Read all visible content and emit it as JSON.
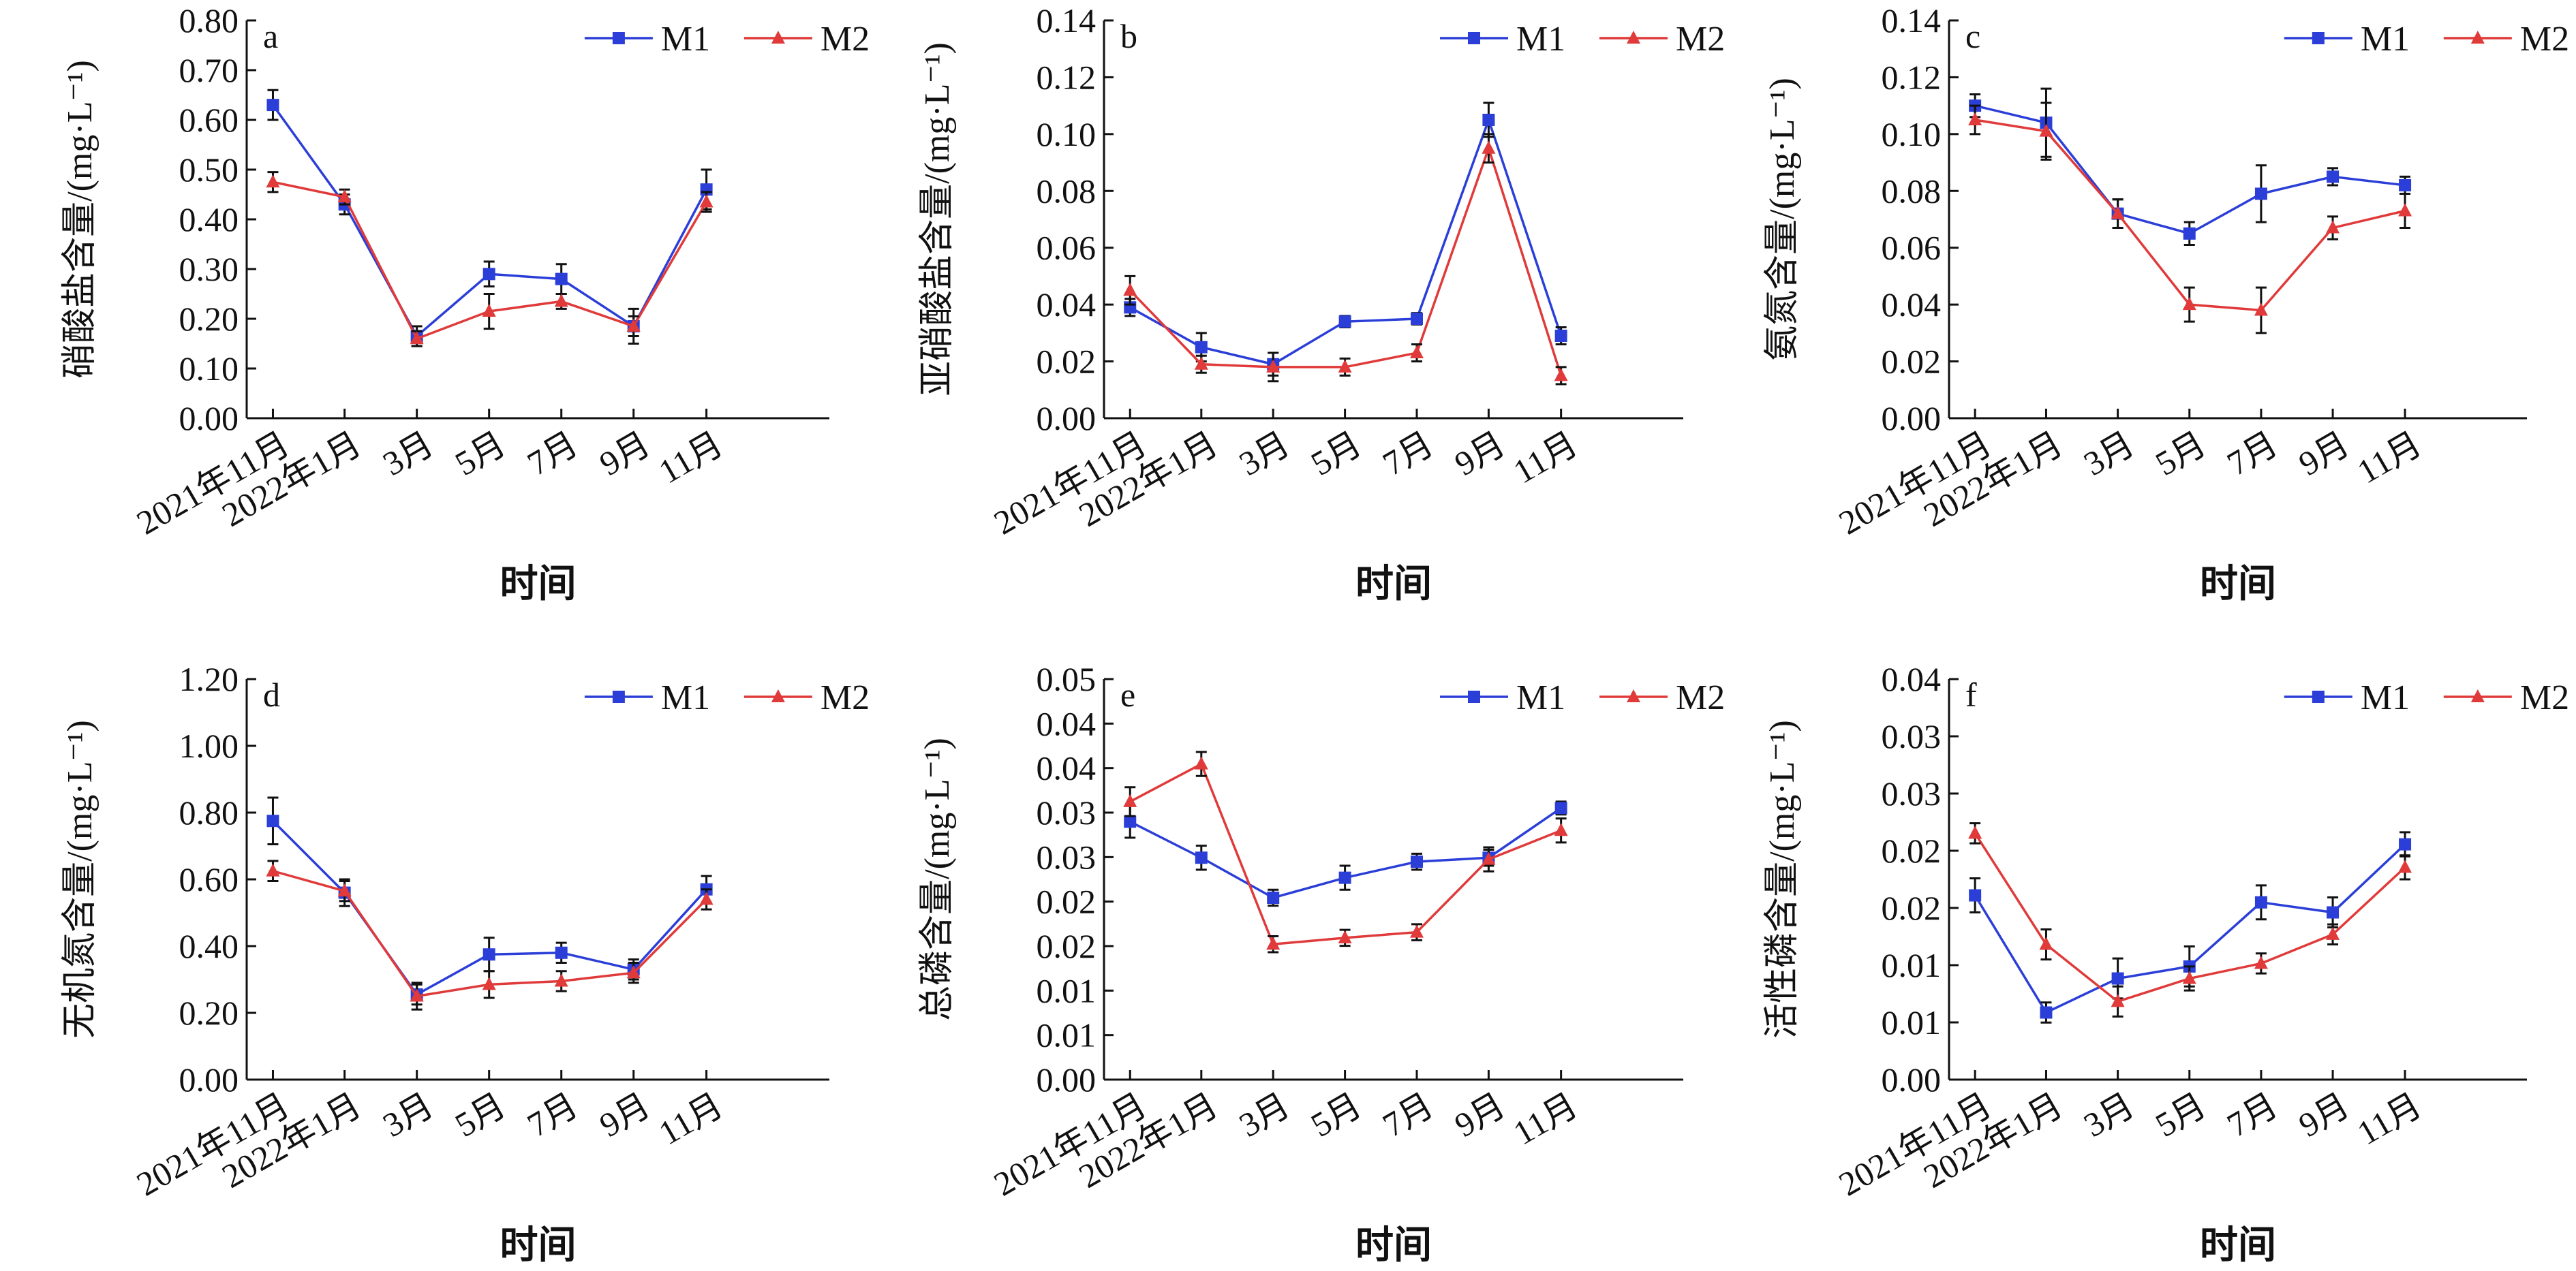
{
  "shared": {
    "xlabel": "时间",
    "x_categories": [
      "2021年11月",
      "2022年1月",
      "3月",
      "5月",
      "7月",
      "9月",
      "11月"
    ],
    "legend_labels": [
      "M1",
      "M2"
    ],
    "series_colors": {
      "M1": "#2b3fd8",
      "M2": "#e03a3a"
    },
    "markers": {
      "M1": "square",
      "M2": "triangle"
    }
  },
  "chart_data": [
    {
      "panel": "a",
      "type": "line",
      "ylabel": "硝酸盐含量/(mg·L⁻¹)",
      "ylim": [
        0,
        0.8
      ],
      "yticks": [
        "0.00",
        "0.10",
        "0.20",
        "0.30",
        "0.40",
        "0.50",
        "0.60",
        "0.70",
        "0.80"
      ],
      "categories": [
        "2021年11月",
        "2022年1月",
        "3月",
        "5月",
        "7月",
        "9月",
        "11月"
      ],
      "series": [
        {
          "name": "M1",
          "values": [
            0.63,
            0.43,
            0.165,
            0.29,
            0.28,
            0.185,
            0.46
          ],
          "errors": [
            0.03,
            0.02,
            0.02,
            0.025,
            0.03,
            0.035,
            0.04
          ]
        },
        {
          "name": "M2",
          "values": [
            0.475,
            0.445,
            0.16,
            0.215,
            0.235,
            0.185,
            0.435
          ],
          "errors": [
            0.02,
            0.015,
            0.015,
            0.035,
            0.015,
            0.02,
            0.02
          ]
        }
      ]
    },
    {
      "panel": "b",
      "type": "line",
      "ylabel": "亚硝酸盐含量/(mg·L⁻¹)",
      "ylim": [
        0,
        0.14
      ],
      "yticks": [
        "0.00",
        "0.02",
        "0.04",
        "0.06",
        "0.08",
        "0.10",
        "0.12",
        "0.14"
      ],
      "categories": [
        "2021年11月",
        "2022年1月",
        "3月",
        "5月",
        "7月",
        "9月",
        "11月"
      ],
      "series": [
        {
          "name": "M1",
          "values": [
            0.039,
            0.025,
            0.019,
            0.034,
            0.035,
            0.105,
            0.029
          ],
          "errors": [
            0.003,
            0.005,
            0.004,
            0.002,
            0.002,
            0.006,
            0.003
          ]
        },
        {
          "name": "M2",
          "values": [
            0.045,
            0.019,
            0.018,
            0.018,
            0.023,
            0.095,
            0.015
          ],
          "errors": [
            0.005,
            0.003,
            0.005,
            0.003,
            0.003,
            0.005,
            0.003
          ]
        }
      ]
    },
    {
      "panel": "c",
      "type": "line",
      "ylabel": "氨氮含量/(mg·L⁻¹)",
      "ylim": [
        0,
        0.14
      ],
      "yticks": [
        "0.00",
        "0.02",
        "0.04",
        "0.06",
        "0.08",
        "0.10",
        "0.12",
        "0.14"
      ],
      "categories": [
        "2021年11月",
        "2022年1月",
        "3月",
        "5月",
        "7月",
        "9月",
        "11月"
      ],
      "series": [
        {
          "name": "M1",
          "values": [
            0.11,
            0.104,
            0.072,
            0.065,
            0.079,
            0.085,
            0.082
          ],
          "errors": [
            0.004,
            0.012,
            0.005,
            0.004,
            0.01,
            0.003,
            0.003
          ]
        },
        {
          "name": "M2",
          "values": [
            0.105,
            0.101,
            0.072,
            0.04,
            0.038,
            0.067,
            0.073
          ],
          "errors": [
            0.005,
            0.01,
            0.005,
            0.006,
            0.008,
            0.004,
            0.006
          ]
        }
      ]
    },
    {
      "panel": "d",
      "type": "line",
      "ylabel": "无机氮含量/(mg·L⁻¹)",
      "ylim": [
        0,
        1.2
      ],
      "yticks": [
        "0.00",
        "0.20",
        "0.40",
        "0.60",
        "0.80",
        "1.00",
        "1.20"
      ],
      "categories": [
        "2021年11月",
        "2022年1月",
        "3月",
        "5月",
        "7月",
        "9月",
        "11月"
      ],
      "series": [
        {
          "name": "M1",
          "values": [
            0.775,
            0.56,
            0.255,
            0.375,
            0.38,
            0.33,
            0.57
          ],
          "errors": [
            0.07,
            0.04,
            0.03,
            0.05,
            0.03,
            0.03,
            0.04
          ]
        },
        {
          "name": "M2",
          "values": [
            0.625,
            0.565,
            0.25,
            0.285,
            0.295,
            0.32,
            0.54
          ],
          "errors": [
            0.03,
            0.03,
            0.04,
            0.04,
            0.03,
            0.03,
            0.03
          ]
        }
      ]
    },
    {
      "panel": "e",
      "type": "line",
      "ylabel": "总磷含量/(mg·L⁻¹)",
      "ylim": [
        0,
        0.05
      ],
      "yticks": [
        "0.00",
        "0.01",
        "0.01",
        "0.02",
        "0.02",
        "0.03",
        "0.03",
        "0.04",
        "0.04",
        "0.05"
      ],
      "categories": [
        "2021年11月",
        "2022年1月",
        "3月",
        "5月",
        "7月",
        "9月",
        "11月"
      ],
      "series": [
        {
          "name": "M1",
          "values": [
            0.0322,
            0.0277,
            0.0227,
            0.0252,
            0.0272,
            0.0277,
            0.0339
          ],
          "errors": [
            0.002,
            0.0015,
            0.001,
            0.0015,
            0.001,
            0.001,
            0.0008
          ]
        },
        {
          "name": "M2",
          "values": [
            0.0347,
            0.0394,
            0.0169,
            0.0177,
            0.0184,
            0.0275,
            0.0311
          ],
          "errors": [
            0.0018,
            0.0015,
            0.001,
            0.001,
            0.001,
            0.0015,
            0.0015
          ]
        }
      ]
    },
    {
      "panel": "f",
      "type": "line",
      "ylabel": "活性磷含量/(mg·L⁻¹)",
      "ylim": [
        0,
        0.04
      ],
      "yticks": [
        "0.00",
        "0.01",
        "0.01",
        "0.02",
        "0.02",
        "0.03",
        "0.03",
        "0.04"
      ],
      "categories": [
        "2021年11月",
        "2022年1月",
        "3月",
        "5月",
        "7月",
        "9月",
        "11月"
      ],
      "series": [
        {
          "name": "M1",
          "values": [
            0.0184,
            0.0067,
            0.0101,
            0.0113,
            0.0177,
            0.0167,
            0.0235
          ],
          "errors": [
            0.0017,
            0.001,
            0.002,
            0.002,
            0.0017,
            0.0015,
            0.0012
          ]
        },
        {
          "name": "M2",
          "values": [
            0.0246,
            0.0135,
            0.0078,
            0.0101,
            0.0116,
            0.0145,
            0.0212
          ],
          "errors": [
            0.001,
            0.0015,
            0.0015,
            0.0012,
            0.001,
            0.001,
            0.0012
          ]
        }
      ]
    }
  ]
}
